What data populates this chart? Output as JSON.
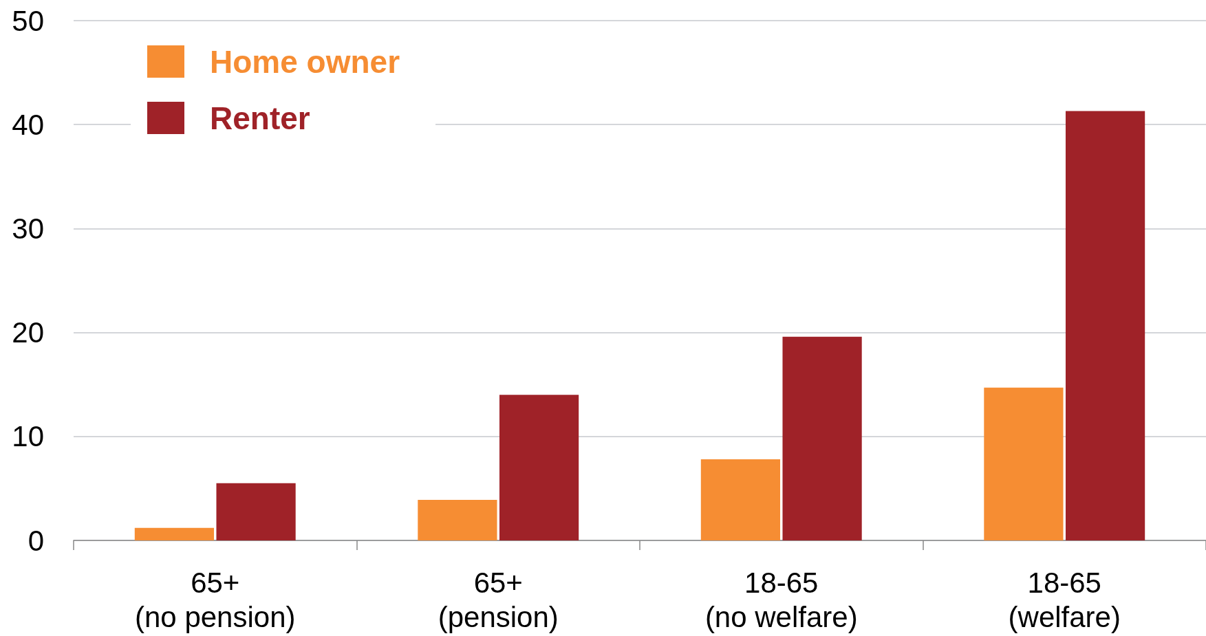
{
  "chart_data": {
    "type": "bar",
    "categories": [
      "65+\n(no pension)",
      "65+\n(pension)",
      "18-65\n(no welfare)",
      "18-65\n(welfare)"
    ],
    "series": [
      {
        "name": "Home owner",
        "color": "#f68d33",
        "values": [
          1.2,
          3.9,
          7.8,
          14.7
        ]
      },
      {
        "name": "Renter",
        "color": "#9f2228",
        "values": [
          5.5,
          14.0,
          19.6,
          41.3
        ]
      }
    ],
    "ylim": [
      0,
      50
    ],
    "yticks": [
      0,
      10,
      20,
      30,
      40,
      50
    ],
    "grid": "y",
    "legend": "top left"
  }
}
